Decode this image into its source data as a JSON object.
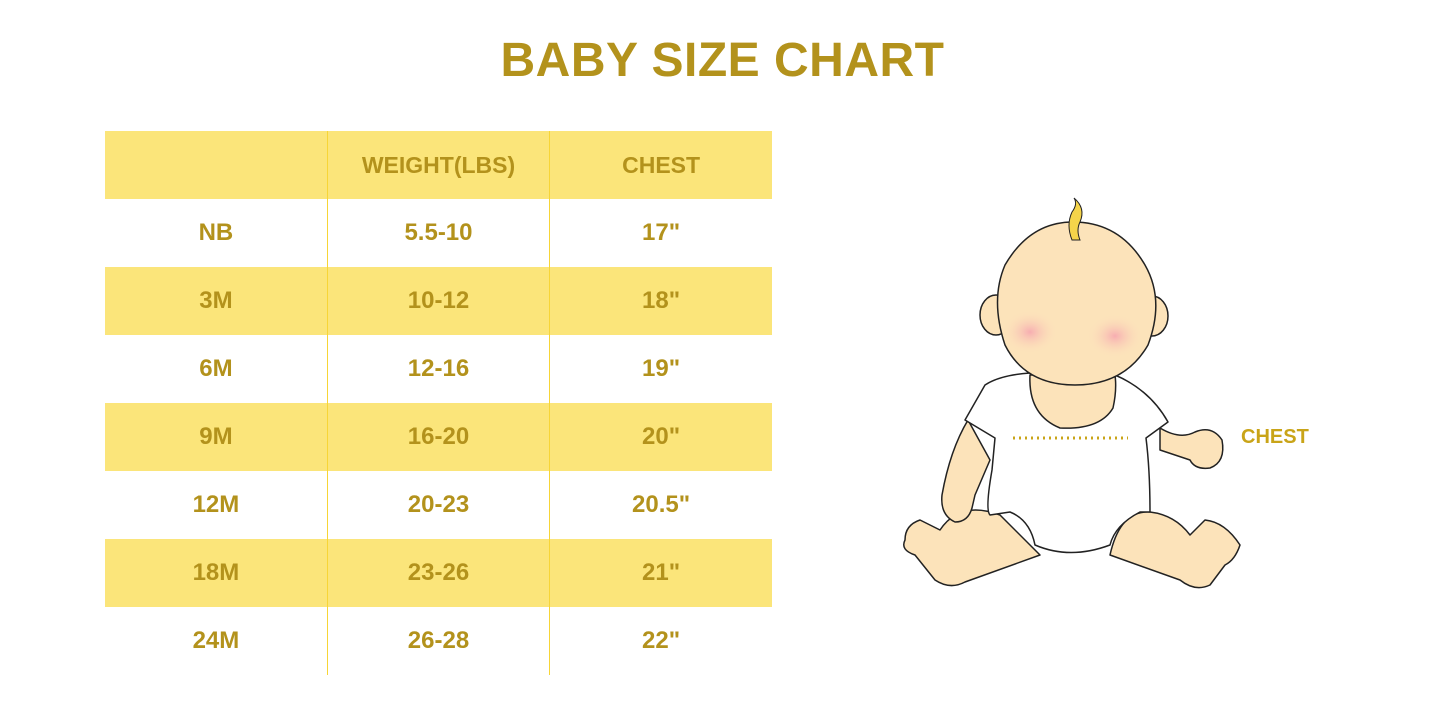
{
  "title": "BABY SIZE CHART",
  "table": {
    "headers": [
      "",
      "WEIGHT(LBS)",
      "CHEST"
    ],
    "rows": [
      [
        "NB",
        "5.5-10",
        "17\""
      ],
      [
        "3M",
        "10-12",
        "18\""
      ],
      [
        "6M",
        "12-16",
        "19\""
      ],
      [
        "9M",
        "16-20",
        "20\""
      ],
      [
        "12M",
        "20-23",
        "20.5\""
      ],
      [
        "18M",
        "23-26",
        "21\""
      ],
      [
        "24M",
        "26-28",
        "22\""
      ]
    ]
  },
  "illustration": {
    "label": "CHEST",
    "icon": "baby-illustration"
  },
  "colors": {
    "text": "#B3921C",
    "stripe": "#FBE57A",
    "divider": "#F7D536",
    "skin": "#FCE3BA"
  }
}
